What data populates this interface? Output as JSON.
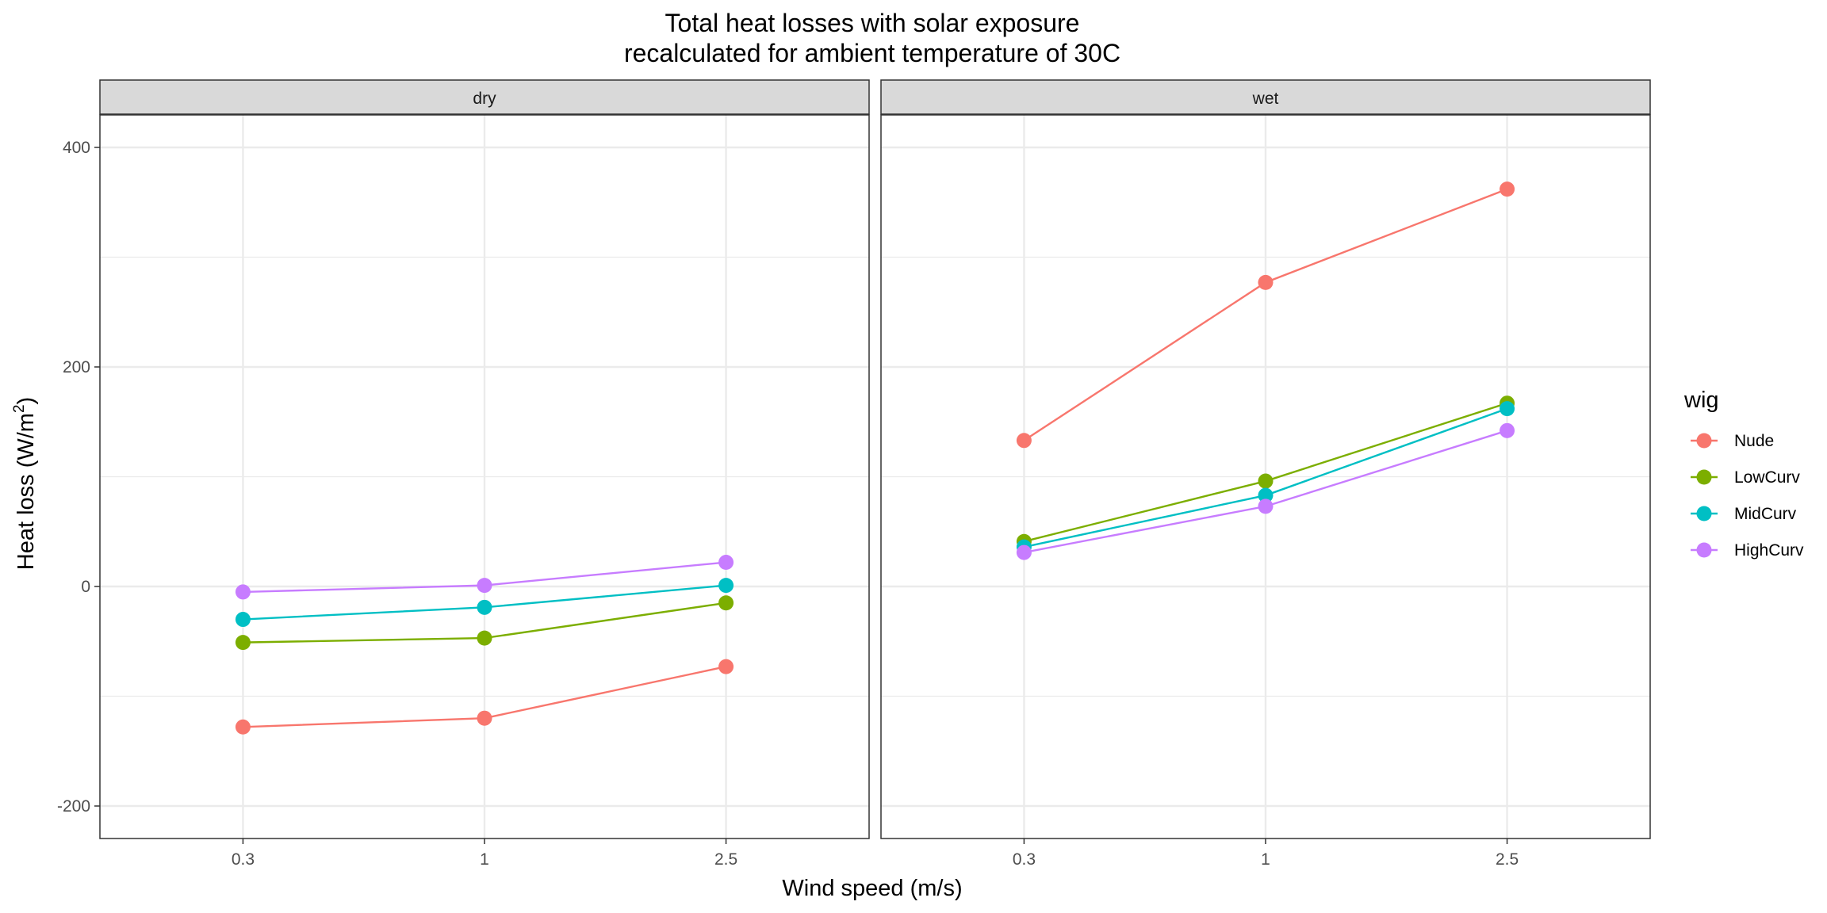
{
  "chart_data": {
    "type": "line",
    "title_line1": "Total heat losses with solar exposure",
    "title_line2": "recalculated for ambient temperature of 30C",
    "xlabel": "Wind speed (m/s)",
    "ylabel": "Heat loss (W/m²)",
    "ylabel_prefix": "Heat loss (W/m",
    "ylabel_sup": "2",
    "ylabel_suffix": ")",
    "x_categories": [
      "0.3",
      "1",
      "2.5"
    ],
    "y_ticks": [
      -200,
      0,
      200,
      400
    ],
    "y_tick_labels": [
      "-200",
      "0",
      "200",
      "400"
    ],
    "ylim": [
      -230,
      400
    ],
    "grid": true,
    "legend": {
      "title": "wig",
      "placement": "right",
      "entries": [
        "Nude",
        "LowCurv",
        "MidCurv",
        "HighCurv"
      ]
    },
    "colors": {
      "Nude": "#F8766D",
      "LowCurv": "#7CAE00",
      "MidCurv": "#00BFC4",
      "HighCurv": "#C77CFF"
    },
    "panels": [
      {
        "label": "dry",
        "series": [
          {
            "name": "Nude",
            "values": [
              -128,
              -120,
              -73
            ]
          },
          {
            "name": "LowCurv",
            "values": [
              -51,
              -47,
              -15
            ]
          },
          {
            "name": "MidCurv",
            "values": [
              -30,
              -19,
              1
            ]
          },
          {
            "name": "HighCurv",
            "values": [
              -5,
              1,
              22
            ]
          }
        ]
      },
      {
        "label": "wet",
        "series": [
          {
            "name": "Nude",
            "values": [
              133,
              277,
              362
            ]
          },
          {
            "name": "LowCurv",
            "values": [
              41,
              96,
              167
            ]
          },
          {
            "name": "MidCurv",
            "values": [
              36,
              83,
              162
            ]
          },
          {
            "name": "HighCurv",
            "values": [
              31,
              73,
              142
            ]
          }
        ]
      }
    ]
  }
}
